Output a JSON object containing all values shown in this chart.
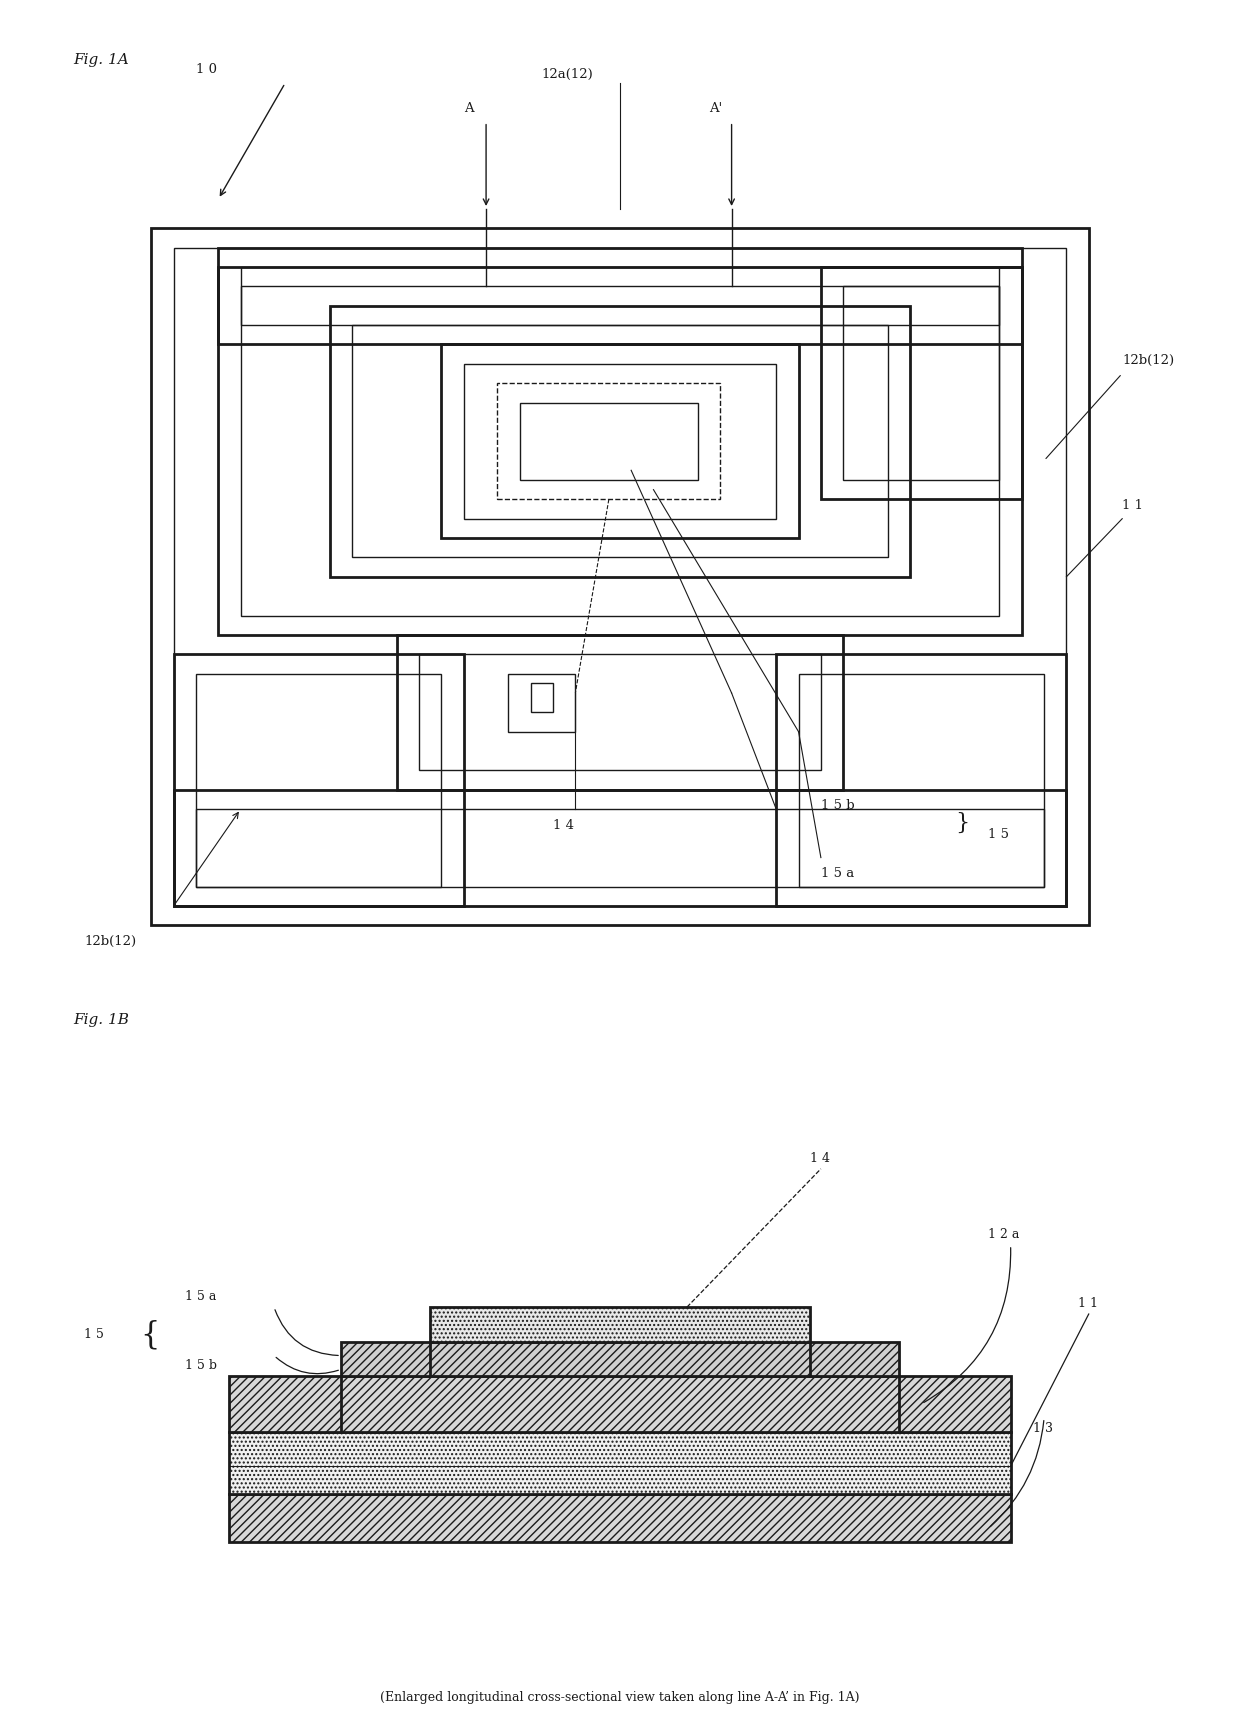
{
  "bg_color": "#ffffff",
  "line_color": "#1a1a1a",
  "fig_width": 12.4,
  "fig_height": 17.29,
  "fig1A_label": "Fig. 1A",
  "fig1B_label": "Fig. 1B",
  "caption": "(Enlarged longitudinal cross-sectional view taken along line A-A’ in Fig. 1A)"
}
